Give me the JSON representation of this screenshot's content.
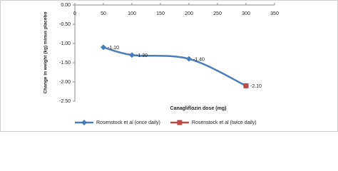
{
  "chart_data": {
    "type": "line",
    "y_label": "Change in weight (kg) minus placebo",
    "x_label": "Canagliflozin dose (mg)",
    "x": [
      50,
      100,
      200,
      300
    ],
    "series": [
      {
        "name": "Rosenstock et al (once daily)",
        "color": "#4a7ebb",
        "marker": "diamond",
        "values": [
          -1.1,
          -1.3,
          -1.4,
          -2.1
        ],
        "value_labels": [
          "-1.10",
          "-1.30",
          "-1.40",
          null
        ]
      },
      {
        "name": "Rosenstock et al (twice daily)",
        "color": "#be4b48",
        "marker": "square",
        "values": [
          null,
          null,
          null,
          -2.1
        ],
        "value_labels": [
          null,
          null,
          null,
          "-2.10"
        ]
      }
    ],
    "xlim": [
      0,
      350
    ],
    "xticks": [
      0,
      50,
      100,
      150,
      200,
      250,
      300,
      350
    ],
    "ylim": [
      -2.5,
      0
    ],
    "yticks": [
      {
        "value": 0,
        "label": "0.00"
      },
      {
        "value": -0.5,
        "label": "-0.50"
      },
      {
        "value": -1,
        "label": "-1.00"
      },
      {
        "value": -1.5,
        "label": "-1.50"
      },
      {
        "value": -2,
        "label": "-2.00"
      },
      {
        "value": -2.5,
        "label": "-2.50"
      }
    ],
    "smooth": true,
    "legend": "bottom"
  }
}
